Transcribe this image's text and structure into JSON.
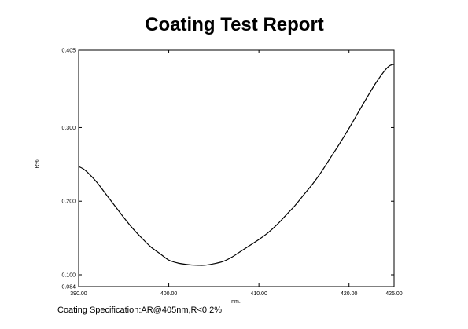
{
  "chart_data": {
    "type": "line",
    "title": "Coating Test Report",
    "xlabel": "nm.",
    "ylabel": "R%",
    "footer": "Coating Specification:AR@405nm,R<0.2%",
    "xlim": [
      390.0,
      425.0
    ],
    "ylim": [
      0.084,
      0.405
    ],
    "xticks": [
      390.0,
      400.0,
      410.0,
      420.0,
      425.0
    ],
    "xtick_labels": [
      "390.00",
      "400.00",
      "410.00",
      "420.00",
      "425.00"
    ],
    "yticks": [
      0.084,
      0.1,
      0.2,
      0.3,
      0.405
    ],
    "ytick_labels": [
      "0.084",
      "0.100",
      "0.200",
      "0.300",
      "0.405"
    ],
    "grid": false,
    "series": [
      {
        "color": "#000000",
        "x": [
          390.0,
          390.5,
          391.0,
          392.0,
          393.0,
          394.0,
          395.0,
          396.0,
          397.0,
          398.0,
          399.0,
          400.0,
          401.0,
          402.0,
          403.0,
          404.0,
          405.0,
          406.0,
          407.0,
          408.0,
          409.0,
          410.0,
          411.0,
          412.0,
          413.0,
          414.0,
          415.0,
          416.0,
          417.0,
          418.0,
          419.0,
          420.0,
          421.0,
          422.0,
          423.0,
          424.0,
          424.5,
          425.0
        ],
        "y": [
          0.247,
          0.244,
          0.239,
          0.226,
          0.21,
          0.194,
          0.178,
          0.163,
          0.15,
          0.138,
          0.129,
          0.12,
          0.116,
          0.114,
          0.113,
          0.113,
          0.115,
          0.118,
          0.124,
          0.132,
          0.14,
          0.148,
          0.157,
          0.168,
          0.181,
          0.194,
          0.209,
          0.224,
          0.241,
          0.26,
          0.279,
          0.299,
          0.32,
          0.341,
          0.361,
          0.378,
          0.384,
          0.386
        ]
      }
    ]
  }
}
